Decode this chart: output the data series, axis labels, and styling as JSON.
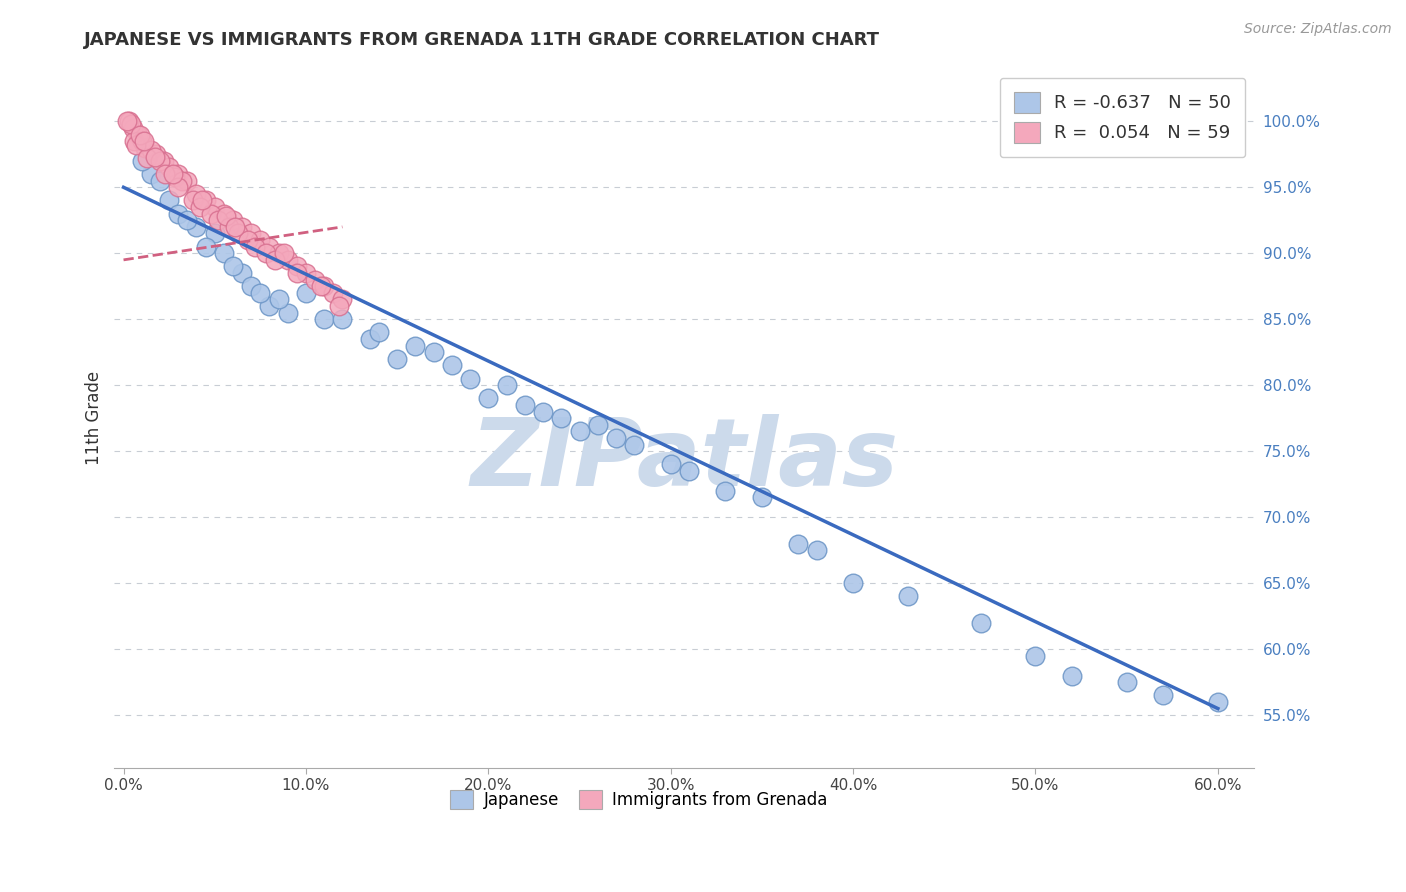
{
  "title": "JAPANESE VS IMMIGRANTS FROM GRENADA 11TH GRADE CORRELATION CHART",
  "source_text": "Source: ZipAtlas.com",
  "ylabel": "11th Grade",
  "xlabel_ticks": [
    "0.0%",
    "10.0%",
    "20.0%",
    "30.0%",
    "40.0%",
    "50.0%",
    "60.0%"
  ],
  "ytick_labels_right": [
    "100.0%",
    "95.0%",
    "90.0%",
    "85.0%",
    "80.0%",
    "75.0%",
    "70.0%",
    "65.0%",
    "60.0%",
    "55.0%"
  ],
  "ytick_vals": [
    100,
    95,
    90,
    85,
    80,
    75,
    70,
    65,
    60,
    55
  ],
  "xlim": [
    0.0,
    62.0
  ],
  "ylim": [
    51.0,
    104.0
  ],
  "legend_label1": "R = -0.637   N = 50",
  "legend_label2": "R =  0.054   N = 59",
  "legend_color1": "#adc6e8",
  "legend_color2": "#f4a8bc",
  "watermark": "ZIPatlas",
  "watermark_color": "#ccdaeb",
  "japanese_color": "#adc6e8",
  "grenada_color": "#f4a8bc",
  "japanese_edge": "#7098c8",
  "grenada_edge": "#d87090",
  "trend_blue": "#3a6abf",
  "trend_pink": "#d06080",
  "background_color": "#ffffff",
  "grid_color": "#c8cdd4",
  "japanese_x": [
    1.5,
    2.5,
    5.0,
    3.0,
    4.0,
    6.5,
    1.0,
    2.0,
    3.5,
    4.5,
    7.0,
    5.5,
    8.0,
    6.0,
    9.0,
    7.5,
    10.0,
    8.5,
    11.0,
    12.0,
    13.5,
    15.0,
    14.0,
    16.0,
    18.0,
    17.0,
    20.0,
    19.0,
    22.0,
    21.0,
    23.0,
    25.0,
    24.0,
    27.0,
    26.0,
    28.0,
    31.0,
    33.0,
    35.0,
    40.0,
    37.0,
    43.0,
    47.0,
    52.0,
    50.0,
    55.0,
    30.0,
    38.0,
    57.0,
    60.0
  ],
  "japanese_y": [
    96.0,
    94.0,
    91.5,
    93.0,
    92.0,
    88.5,
    97.0,
    95.5,
    92.5,
    90.5,
    87.5,
    90.0,
    86.0,
    89.0,
    85.5,
    87.0,
    87.0,
    86.5,
    85.0,
    85.0,
    83.5,
    82.0,
    84.0,
    83.0,
    81.5,
    82.5,
    79.0,
    80.5,
    78.5,
    80.0,
    78.0,
    76.5,
    77.5,
    76.0,
    77.0,
    75.5,
    73.5,
    72.0,
    71.5,
    65.0,
    68.0,
    64.0,
    62.0,
    58.0,
    59.5,
    57.5,
    74.0,
    67.5,
    56.5,
    56.0
  ],
  "grenada_x": [
    0.5,
    0.8,
    1.2,
    0.3,
    1.8,
    2.2,
    0.6,
    1.0,
    2.5,
    0.4,
    1.5,
    3.0,
    0.7,
    1.3,
    3.5,
    2.0,
    4.0,
    1.7,
    4.5,
    2.8,
    5.0,
    3.2,
    5.5,
    2.3,
    6.0,
    3.8,
    6.5,
    4.2,
    7.0,
    3.0,
    7.5,
    4.8,
    8.0,
    5.2,
    8.5,
    5.8,
    9.0,
    6.3,
    9.5,
    6.8,
    10.0,
    7.2,
    10.5,
    7.8,
    11.0,
    8.3,
    11.5,
    9.5,
    12.0,
    10.8,
    0.2,
    0.9,
    1.1,
    2.7,
    4.3,
    5.6,
    6.1,
    8.8,
    11.8
  ],
  "grenada_y": [
    99.5,
    99.0,
    98.0,
    100.0,
    97.5,
    97.0,
    98.5,
    98.5,
    96.5,
    99.8,
    97.8,
    96.0,
    98.2,
    97.2,
    95.5,
    97.0,
    94.5,
    97.3,
    94.0,
    95.8,
    93.5,
    95.5,
    93.0,
    96.0,
    92.5,
    94.0,
    92.0,
    93.5,
    91.5,
    95.0,
    91.0,
    93.0,
    90.5,
    92.5,
    90.0,
    92.0,
    89.5,
    91.5,
    89.0,
    91.0,
    88.5,
    90.5,
    88.0,
    90.0,
    87.5,
    89.5,
    87.0,
    88.5,
    86.5,
    87.5,
    100.0,
    99.0,
    98.5,
    96.0,
    94.0,
    92.8,
    92.0,
    90.0,
    86.0
  ],
  "blue_trend_x": [
    0.0,
    60.0
  ],
  "blue_trend_y": [
    95.0,
    55.5
  ],
  "pink_trend_x": [
    0.0,
    12.0
  ],
  "pink_trend_y": [
    89.5,
    92.0
  ]
}
